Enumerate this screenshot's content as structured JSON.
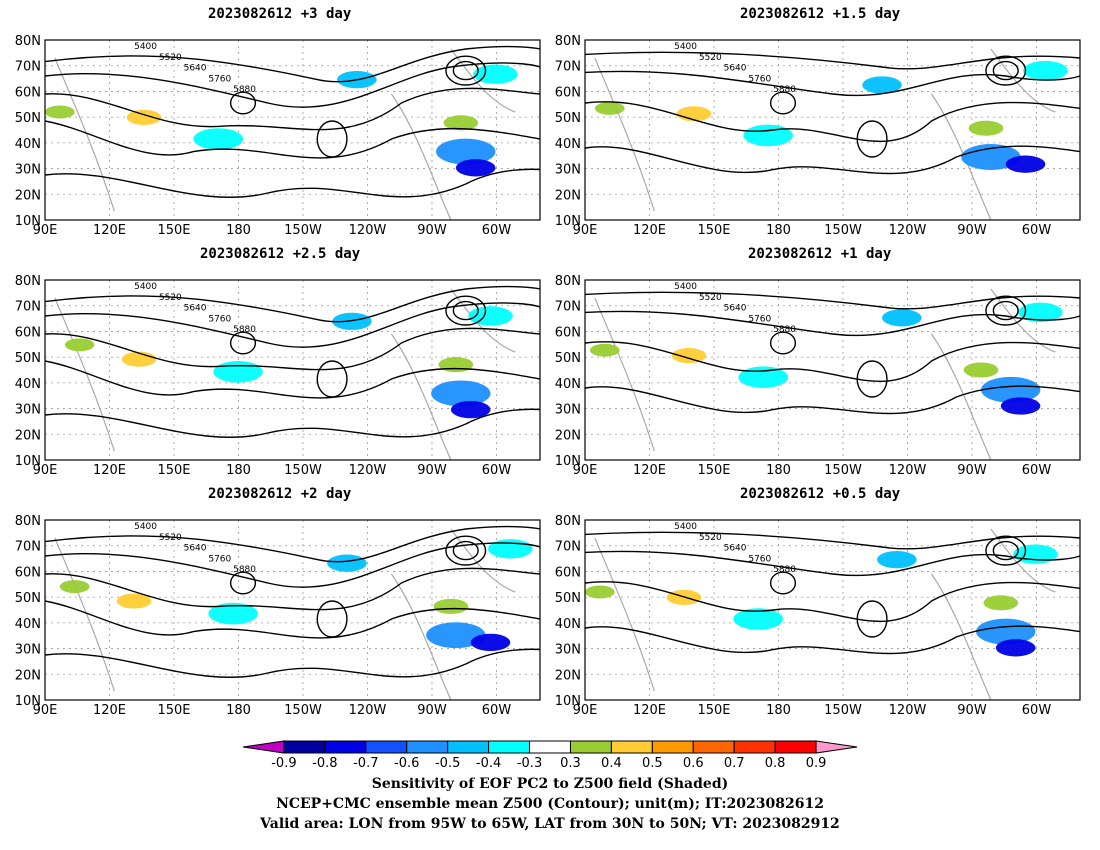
{
  "panels": [
    {
      "title": "2023082612 +3 day"
    },
    {
      "title": "2023082612 +1.5 day"
    },
    {
      "title": "2023082612 +2.5 day"
    },
    {
      "title": "2023082612 +1 day"
    },
    {
      "title": "2023082612 +2 day"
    },
    {
      "title": "2023082612 +0.5 day"
    }
  ],
  "axes": {
    "lat_labels": [
      "80N",
      "70N",
      "60N",
      "50N",
      "40N",
      "30N",
      "20N",
      "10N"
    ],
    "lon_labels": [
      "90E",
      "120E",
      "150E",
      "180",
      "150W",
      "120W",
      "90W",
      "60W"
    ]
  },
  "contour_labels": [
    "5400",
    "5520",
    "5640",
    "5760",
    "5880"
  ],
  "colorbar": {
    "ticks": [
      "-0.9",
      "-0.8",
      "-0.7",
      "-0.6",
      "-0.5",
      "-0.4",
      "-0.3",
      "0.3",
      "0.4",
      "0.5",
      "0.6",
      "0.7",
      "0.8",
      "0.9"
    ],
    "colors": [
      "#c000c0",
      "#0000a0",
      "#0000e6",
      "#1450ff",
      "#1e90ff",
      "#00c0ff",
      "#00ffff",
      "#ffffff",
      "#99cc33",
      "#ffcc33",
      "#ff9900",
      "#ff6600",
      "#ff3300",
      "#ff0000",
      "#ff99cc"
    ]
  },
  "footer": {
    "line1": "Sensitivity of EOF PC2 to Z500 field (Shaded)",
    "line2": "NCEP+CMC ensemble mean Z500 (Contour); unit(m); IT:2023082612",
    "line3": "Valid area: LON from 95W to 65W, LAT from 30N to 50N; VT: 2023082912"
  }
}
